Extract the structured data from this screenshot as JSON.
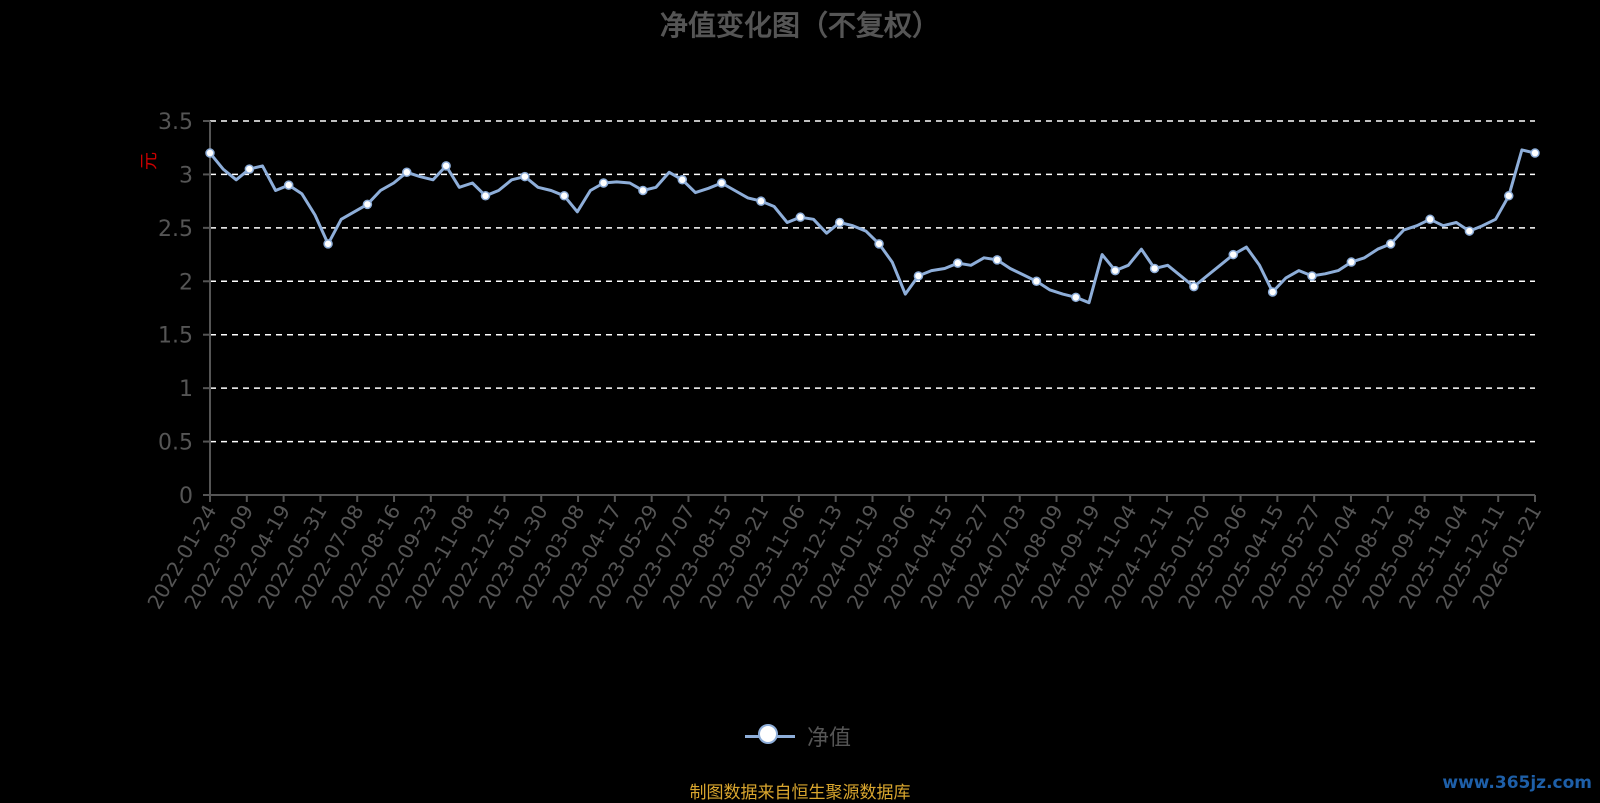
{
  "title": "净值变化图（不复权）",
  "source_note": "制图数据来自恒生聚源数据库",
  "watermark": "www.365jz.com",
  "colors": {
    "series": "#8eaed9",
    "grid": "#ffffff",
    "axis": "#555555",
    "unit": "#cc0000",
    "source": "#d9a62e"
  },
  "chart_data": {
    "type": "line",
    "ylabel": "元",
    "ylim": [
      0,
      3.5
    ],
    "yticks": [
      "0",
      "0.5",
      "1",
      "1.5",
      "2",
      "2.5",
      "3",
      "3.5"
    ],
    "grid": true,
    "legend_position": "bottom",
    "x_tick_labels": [
      "2022-01-24",
      "2022-03-09",
      "2022-04-19",
      "2022-05-31",
      "2022-07-08",
      "2022-08-16",
      "2022-09-23",
      "2022-11-08",
      "2022-12-15",
      "2023-01-30",
      "2023-03-08",
      "2023-04-17",
      "2023-05-29",
      "2023-07-07",
      "2023-08-15",
      "2023-09-21",
      "2023-11-06",
      "2023-12-13",
      "2024-01-19",
      "2024-03-06",
      "2024-04-15",
      "2024-05-27",
      "2024-07-03",
      "2024-08-09",
      "2024-09-19",
      "2024-11-04",
      "2024-12-11",
      "2025-01-20",
      "2025-03-06",
      "2025-04-15",
      "2025-05-27",
      "2025-07-04",
      "2025-08-12",
      "2025-09-18",
      "2025-11-04",
      "2025-12-11",
      "2026-01-21"
    ],
    "series": [
      {
        "name": "净值",
        "values": [
          3.2,
          3.05,
          2.95,
          3.05,
          3.08,
          2.85,
          2.9,
          2.82,
          2.62,
          2.35,
          2.58,
          2.65,
          2.72,
          2.85,
          2.92,
          3.02,
          2.98,
          2.95,
          3.08,
          2.88,
          2.92,
          2.8,
          2.85,
          2.95,
          2.98,
          2.88,
          2.85,
          2.8,
          2.65,
          2.85,
          2.92,
          2.93,
          2.92,
          2.85,
          2.88,
          3.02,
          2.95,
          2.83,
          2.87,
          2.92,
          2.85,
          2.78,
          2.75,
          2.7,
          2.55,
          2.6,
          2.58,
          2.45,
          2.55,
          2.52,
          2.47,
          2.35,
          2.18,
          1.88,
          2.05,
          2.1,
          2.12,
          2.17,
          2.15,
          2.22,
          2.2,
          2.12,
          2.06,
          2.0,
          1.92,
          1.88,
          1.85,
          1.8,
          2.25,
          2.1,
          2.15,
          2.3,
          2.12,
          2.15,
          2.05,
          1.95,
          2.05,
          2.15,
          2.25,
          2.32,
          2.15,
          1.9,
          2.03,
          2.1,
          2.05,
          2.07,
          2.1,
          2.18,
          2.22,
          2.3,
          2.35,
          2.48,
          2.52,
          2.58,
          2.52,
          2.55,
          2.47,
          2.52,
          2.58,
          2.8,
          3.23,
          3.2
        ]
      }
    ]
  }
}
